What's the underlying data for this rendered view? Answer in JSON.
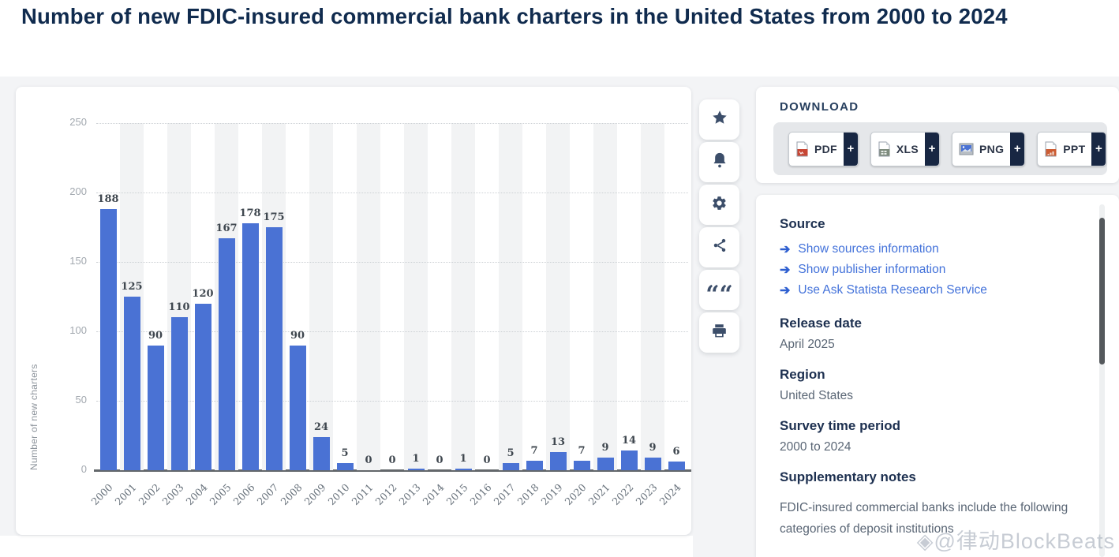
{
  "page": {
    "title": "Number of new FDIC-insured commercial bank charters in the United States from 2000 to 2024"
  },
  "chart_data": {
    "type": "bar",
    "categories": [
      "2000",
      "2001",
      "2002",
      "2003",
      "2004",
      "2005",
      "2006",
      "2007",
      "2008",
      "2009",
      "2010",
      "2011",
      "2012",
      "2013",
      "2014",
      "2015",
      "2016",
      "2017",
      "2018",
      "2019",
      "2020",
      "2021",
      "2022",
      "2023",
      "2024"
    ],
    "values": [
      188,
      125,
      90,
      110,
      120,
      167,
      178,
      175,
      90,
      24,
      5,
      0,
      0,
      1,
      0,
      1,
      0,
      5,
      7,
      13,
      7,
      9,
      14,
      9,
      6
    ],
    "title": "",
    "xlabel": "",
    "ylabel": "Number of new charters",
    "ylim": [
      0,
      250
    ],
    "yticks": [
      0,
      50,
      100,
      150,
      200,
      250
    ],
    "grid": "horizontal-dotted",
    "legend": "none",
    "bar_color": "#4a72d4",
    "stripe_color": "#f2f3f4"
  },
  "toolbar": {
    "icons": [
      "star",
      "bell",
      "gear",
      "share",
      "quote",
      "print"
    ]
  },
  "download": {
    "heading": "DOWNLOAD",
    "plus": "+",
    "formats": [
      {
        "label": "PDF"
      },
      {
        "label": "XLS"
      },
      {
        "label": "PNG"
      },
      {
        "label": "PPT"
      }
    ]
  },
  "info": {
    "source_heading": "Source",
    "links": [
      "Show sources information",
      "Show publisher information",
      "Use Ask Statista Research Service"
    ],
    "release_date_heading": "Release date",
    "release_date": "April 2025",
    "region_heading": "Region",
    "region": "United States",
    "survey_heading": "Survey time period",
    "survey_period": "2000 to 2024",
    "notes_heading": "Supplementary notes",
    "notes_text": "FDIC-insured commercial banks include the following categories of deposit institutions"
  },
  "watermark": {
    "text": "◈@律动BlockBeats"
  }
}
